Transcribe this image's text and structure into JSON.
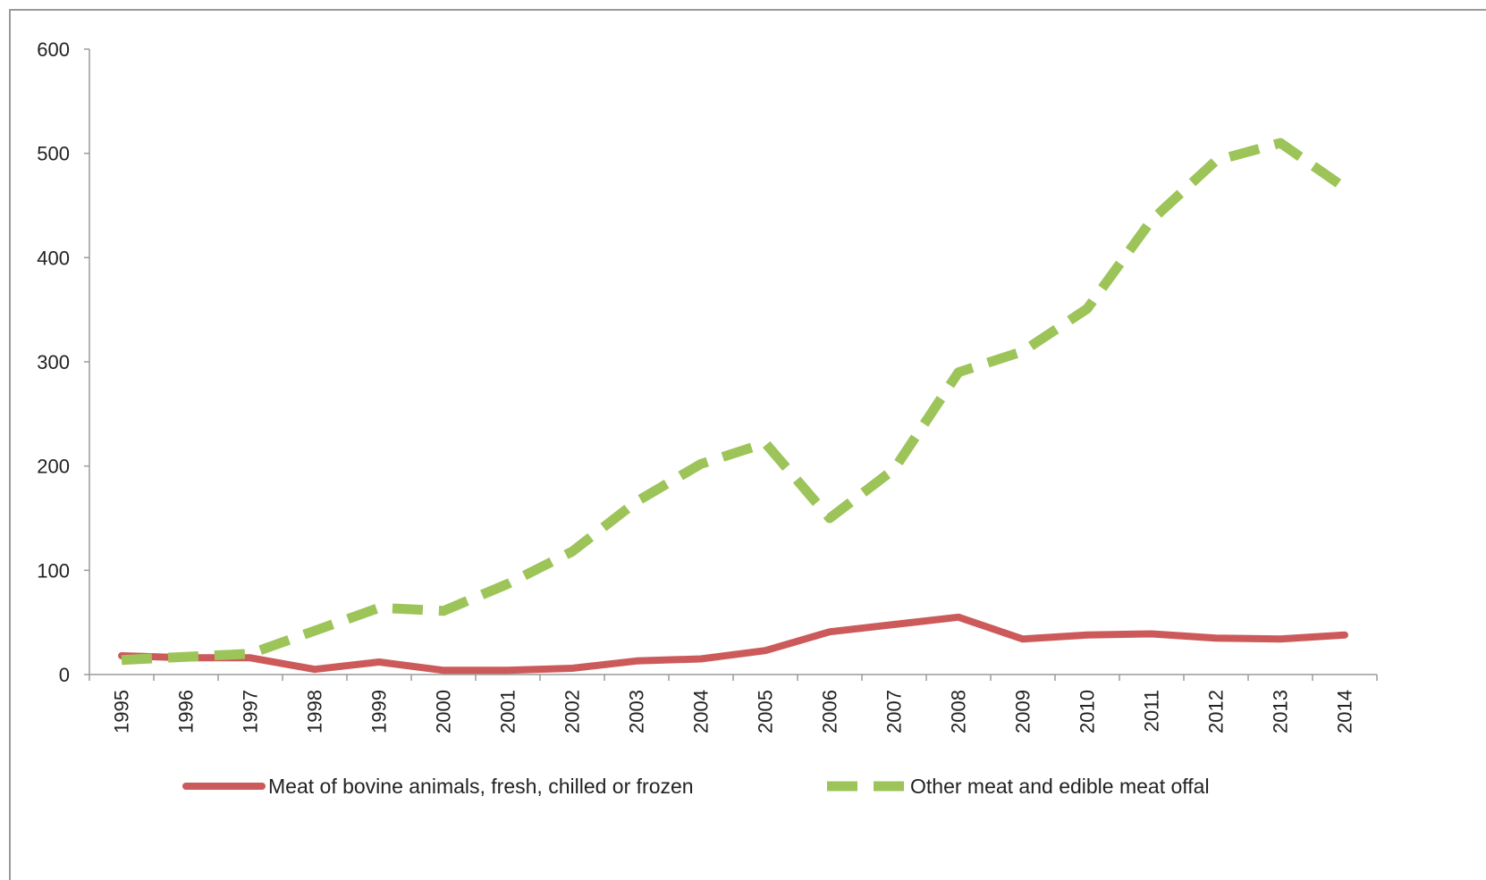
{
  "chart_data": {
    "type": "line",
    "title": "",
    "xlabel": "",
    "ylabel": "",
    "ylim": [
      0,
      600
    ],
    "yticks": [
      0,
      100,
      200,
      300,
      400,
      500,
      600
    ],
    "grid": false,
    "legend_position": "bottom",
    "categories": [
      "1995",
      "1996",
      "1997",
      "1998",
      "1999",
      "2000",
      "2001",
      "2002",
      "2003",
      "2004",
      "2005",
      "2006",
      "2007",
      "2008",
      "2009",
      "2010",
      "2011",
      "2012",
      "2013",
      "2014"
    ],
    "series": [
      {
        "name": "Meat of bovine animals, fresh, chilled or frozen",
        "color": "#cc5a5a",
        "style": "solid",
        "values": [
          18,
          16,
          16,
          5,
          12,
          4,
          4,
          6,
          13,
          15,
          23,
          41,
          48,
          55,
          34,
          38,
          39,
          35,
          34,
          38
        ]
      },
      {
        "name": "Other meat and edible meat offal",
        "color": "#9cc458",
        "style": "dashed",
        "values": [
          14,
          17,
          20,
          42,
          64,
          61,
          87,
          118,
          166,
          202,
          222,
          150,
          197,
          290,
          310,
          351,
          436,
          493,
          510,
          467
        ]
      }
    ]
  }
}
